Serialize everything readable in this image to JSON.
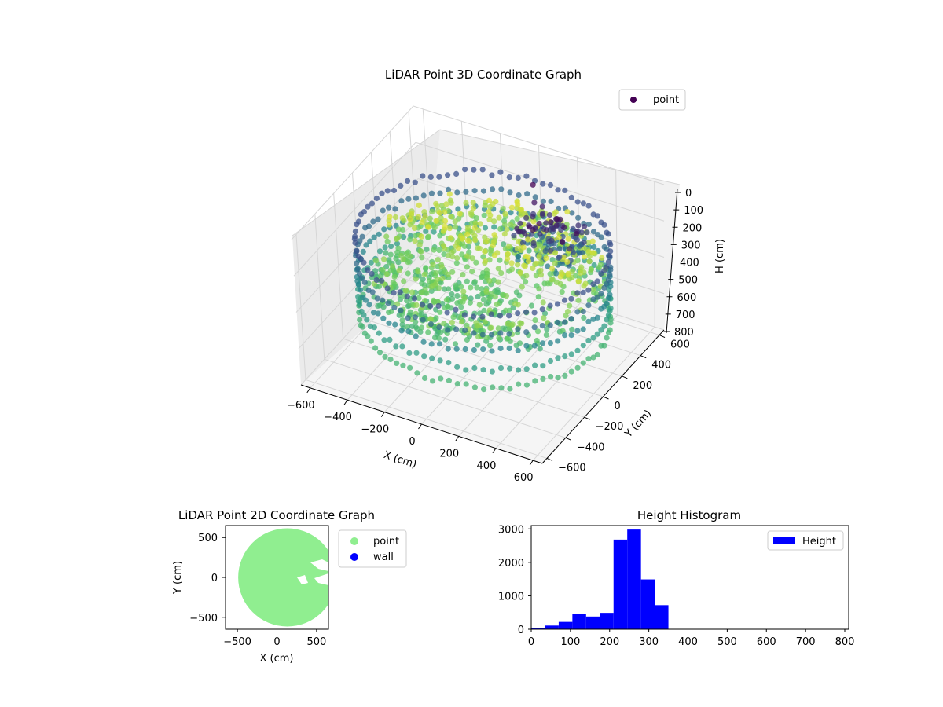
{
  "colors": {
    "viridis": [
      "#440154",
      "#3b528b",
      "#21918c",
      "#5ec962",
      "#fde725"
    ],
    "point_2d": "#90ee90",
    "wall_2d": "#0000ff",
    "histogram": "#0000ff",
    "pane": "#f2f2f2",
    "grid": "#d6d6d6"
  },
  "chart_data": [
    {
      "type": "scatter",
      "projection": "3d",
      "title": "LiDAR Point 3D Coordinate Graph",
      "xlabel": "X (cm)",
      "ylabel": "Y (cm)",
      "zlabel": "H (cm)",
      "xlim": [
        -650,
        650
      ],
      "ylim": [
        -650,
        650
      ],
      "zlim": [
        0,
        800
      ],
      "z_inverted": true,
      "xticks": [
        "−600",
        "−400",
        "−200",
        "0",
        "200",
        "400",
        "600"
      ],
      "yticks": [
        "−600",
        "−400",
        "−200",
        "0",
        "200",
        "400",
        "600"
      ],
      "zticks": [
        "0",
        "100",
        "200",
        "300",
        "400",
        "500",
        "600",
        "700",
        "800"
      ],
      "legend": {
        "label": "point",
        "position": "top-right"
      },
      "colormap": "viridis",
      "description_series": [
        {
          "shape": "wall ring",
          "radius": 620,
          "h": [
            150,
            600
          ]
        },
        {
          "shape": "floor cloud",
          "h": [
            200,
            350
          ]
        },
        {
          "shape": "obstacle cluster",
          "x": [
            50,
            300
          ],
          "y": [
            100,
            400
          ],
          "h": [
            100,
            300
          ]
        }
      ],
      "grid": true
    },
    {
      "type": "scatter",
      "title": "LiDAR Point 2D Coordinate Graph",
      "xlabel": "X (cm)",
      "ylabel": "Y (cm)",
      "xlim": [
        -650,
        650
      ],
      "ylim": [
        -650,
        650
      ],
      "xticks": [
        "−500",
        "0",
        "500"
      ],
      "yticks": [
        "−500",
        "0",
        "500"
      ],
      "legend": {
        "entries": [
          "point",
          "wall"
        ],
        "position": "outside right"
      },
      "series": [
        {
          "name": "point",
          "shape": "disc",
          "center": [
            130,
            0
          ],
          "radius": 620
        },
        {
          "name": "wall",
          "values": []
        }
      ]
    },
    {
      "type": "bar",
      "title": "Height Histogram",
      "xlim": [
        0,
        810
      ],
      "ylim": [
        0,
        3100
      ],
      "xticks": [
        "0",
        "100",
        "200",
        "300",
        "400",
        "500",
        "600",
        "700",
        "800"
      ],
      "yticks": [
        "0",
        "1000",
        "2000",
        "3000"
      ],
      "legend": {
        "label": "Height",
        "position": "top-right"
      },
      "bin_width": 35,
      "bins": [
        0,
        35,
        70,
        105,
        140,
        175,
        210,
        245,
        280,
        315,
        350,
        385,
        420,
        455,
        490,
        525,
        560,
        595,
        630,
        665,
        700,
        735,
        770
      ],
      "values": [
        30,
        110,
        220,
        460,
        380,
        490,
        2680,
        2980,
        1490,
        720,
        5,
        0,
        0,
        0,
        0,
        0,
        0,
        0,
        0,
        0,
        0,
        0,
        0
      ]
    }
  ]
}
